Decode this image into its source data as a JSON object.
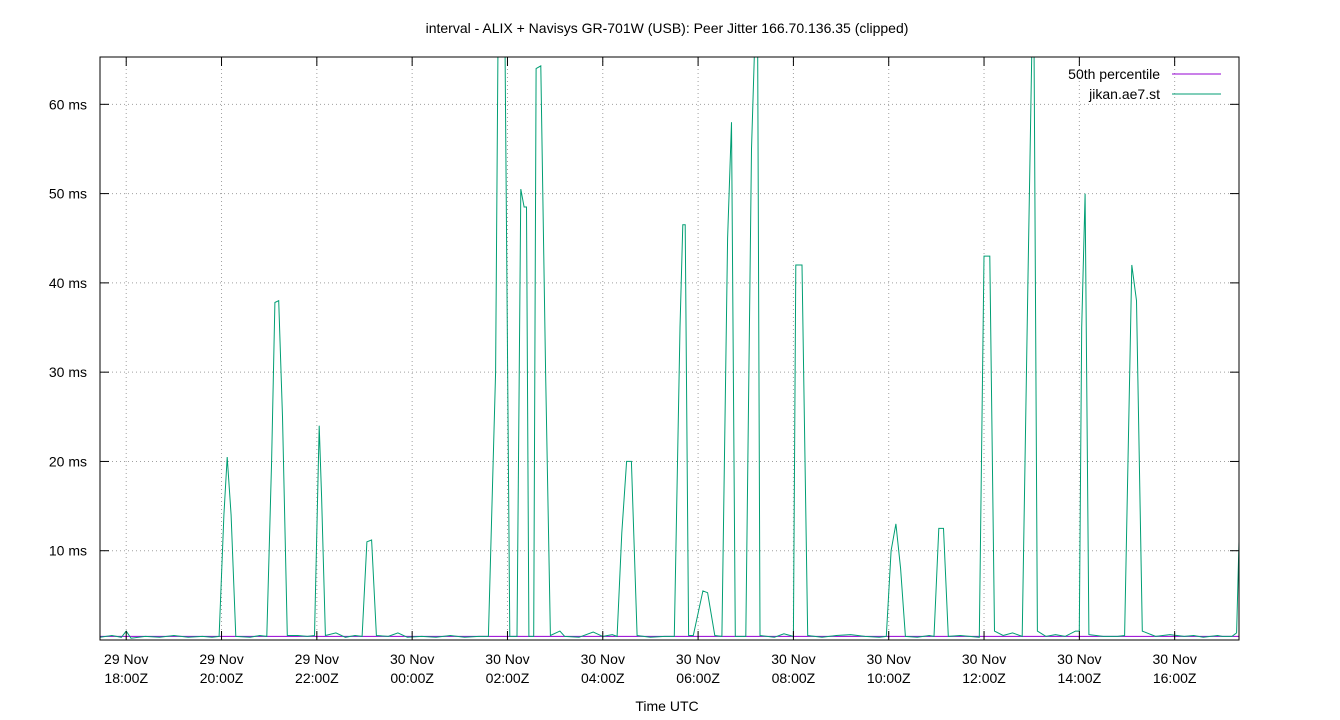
{
  "chart_data": {
    "type": "line",
    "title": "interval - ALIX + Navisys GR-701W (USB): Peer Jitter 166.70.136.35 (clipped)",
    "xlabel": "Time UTC",
    "ylabel": "",
    "y_unit": "ms",
    "ylim": [
      0,
      65.3
    ],
    "xlim": [
      -0.55,
      23.35
    ],
    "grid": true,
    "legend_position": "top-right",
    "y_ticks": [
      {
        "value": 10,
        "label": "10 ms"
      },
      {
        "value": 20,
        "label": "20 ms"
      },
      {
        "value": 30,
        "label": "30 ms"
      },
      {
        "value": 40,
        "label": "40 ms"
      },
      {
        "value": 50,
        "label": "50 ms"
      },
      {
        "value": 60,
        "label": "60 ms"
      }
    ],
    "x_ticks": [
      {
        "value": 0,
        "date": "29 Nov",
        "time": "18:00Z"
      },
      {
        "value": 2,
        "date": "29 Nov",
        "time": "20:00Z"
      },
      {
        "value": 4,
        "date": "29 Nov",
        "time": "22:00Z"
      },
      {
        "value": 6,
        "date": "30 Nov",
        "time": "00:00Z"
      },
      {
        "value": 8,
        "date": "30 Nov",
        "time": "02:00Z"
      },
      {
        "value": 10,
        "date": "30 Nov",
        "time": "04:00Z"
      },
      {
        "value": 12,
        "date": "30 Nov",
        "time": "06:00Z"
      },
      {
        "value": 14,
        "date": "30 Nov",
        "time": "08:00Z"
      },
      {
        "value": 16,
        "date": "30 Nov",
        "time": "10:00Z"
      },
      {
        "value": 18,
        "date": "30 Nov",
        "time": "12:00Z"
      },
      {
        "value": 20,
        "date": "30 Nov",
        "time": "14:00Z"
      },
      {
        "value": 22,
        "date": "30 Nov",
        "time": "16:00Z"
      }
    ],
    "x_units": "hours after 29 Nov 18:00Z",
    "series": [
      {
        "name": "50th percentile",
        "color": "#9400d3",
        "points": [
          [
            -0.55,
            0.4
          ],
          [
            23.35,
            0.4
          ]
        ]
      },
      {
        "name": "jikan.ae7.st",
        "color": "#009e73",
        "points": [
          [
            -0.55,
            0.3
          ],
          [
            -0.3,
            0.5
          ],
          [
            -0.1,
            0.3
          ],
          [
            0.0,
            1.0
          ],
          [
            0.1,
            0.2
          ],
          [
            0.4,
            0.4
          ],
          [
            0.7,
            0.3
          ],
          [
            1.0,
            0.5
          ],
          [
            1.3,
            0.3
          ],
          [
            1.6,
            0.4
          ],
          [
            1.8,
            0.3
          ],
          [
            1.95,
            0.4
          ],
          [
            2.05,
            14.0
          ],
          [
            2.12,
            20.5
          ],
          [
            2.2,
            14.0
          ],
          [
            2.3,
            0.4
          ],
          [
            2.6,
            0.3
          ],
          [
            2.8,
            0.5
          ],
          [
            2.95,
            0.4
          ],
          [
            3.05,
            20.0
          ],
          [
            3.12,
            37.8
          ],
          [
            3.2,
            38.0
          ],
          [
            3.28,
            25.0
          ],
          [
            3.38,
            0.5
          ],
          [
            3.6,
            0.5
          ],
          [
            3.8,
            0.4
          ],
          [
            3.95,
            0.5
          ],
          [
            4.05,
            24.0
          ],
          [
            4.1,
            16.0
          ],
          [
            4.18,
            0.5
          ],
          [
            4.4,
            0.8
          ],
          [
            4.6,
            0.3
          ],
          [
            4.8,
            0.5
          ],
          [
            4.95,
            0.4
          ],
          [
            5.05,
            11.0
          ],
          [
            5.15,
            11.2
          ],
          [
            5.25,
            0.5
          ],
          [
            5.5,
            0.4
          ],
          [
            5.7,
            0.8
          ],
          [
            5.9,
            0.3
          ],
          [
            6.2,
            0.4
          ],
          [
            6.5,
            0.3
          ],
          [
            6.8,
            0.5
          ],
          [
            7.1,
            0.3
          ],
          [
            7.4,
            0.4
          ],
          [
            7.6,
            0.4
          ],
          [
            7.75,
            30.0
          ],
          [
            7.8,
            65.3
          ],
          [
            7.95,
            65.3
          ],
          [
            8.05,
            0.4
          ],
          [
            8.2,
            0.4
          ],
          [
            8.28,
            50.5
          ],
          [
            8.35,
            48.5
          ],
          [
            8.4,
            48.5
          ],
          [
            8.45,
            0.4
          ],
          [
            8.55,
            0.4
          ],
          [
            8.6,
            64.0
          ],
          [
            8.7,
            64.3
          ],
          [
            8.8,
            30.0
          ],
          [
            8.9,
            0.5
          ],
          [
            9.1,
            1.0
          ],
          [
            9.2,
            0.4
          ],
          [
            9.5,
            0.3
          ],
          [
            9.8,
            0.9
          ],
          [
            10.0,
            0.4
          ],
          [
            10.2,
            0.6
          ],
          [
            10.3,
            0.4
          ],
          [
            10.4,
            12.0
          ],
          [
            10.5,
            20.0
          ],
          [
            10.6,
            20.0
          ],
          [
            10.72,
            0.5
          ],
          [
            11.0,
            0.3
          ],
          [
            11.3,
            0.4
          ],
          [
            11.5,
            0.4
          ],
          [
            11.62,
            35.0
          ],
          [
            11.68,
            46.5
          ],
          [
            11.73,
            46.5
          ],
          [
            11.8,
            0.5
          ],
          [
            11.9,
            0.5
          ],
          [
            12.0,
            3.0
          ],
          [
            12.1,
            5.5
          ],
          [
            12.2,
            5.3
          ],
          [
            12.35,
            0.5
          ],
          [
            12.5,
            0.4
          ],
          [
            12.62,
            45.0
          ],
          [
            12.7,
            58.0
          ],
          [
            12.78,
            0.4
          ],
          [
            13.0,
            0.4
          ],
          [
            13.12,
            55.0
          ],
          [
            13.18,
            65.3
          ],
          [
            13.25,
            65.3
          ],
          [
            13.3,
            0.5
          ],
          [
            13.6,
            0.3
          ],
          [
            13.8,
            0.7
          ],
          [
            14.0,
            0.4
          ],
          [
            14.05,
            42.0
          ],
          [
            14.18,
            42.0
          ],
          [
            14.3,
            0.5
          ],
          [
            14.6,
            0.3
          ],
          [
            14.9,
            0.5
          ],
          [
            15.2,
            0.6
          ],
          [
            15.5,
            0.4
          ],
          [
            15.8,
            0.3
          ],
          [
            15.95,
            0.4
          ],
          [
            16.05,
            10.0
          ],
          [
            16.15,
            13.0
          ],
          [
            16.25,
            8.0
          ],
          [
            16.35,
            0.4
          ],
          [
            16.6,
            0.3
          ],
          [
            16.85,
            0.5
          ],
          [
            16.95,
            0.4
          ],
          [
            17.05,
            12.5
          ],
          [
            17.15,
            12.5
          ],
          [
            17.25,
            0.4
          ],
          [
            17.5,
            0.5
          ],
          [
            17.7,
            0.4
          ],
          [
            17.9,
            0.3
          ],
          [
            18.0,
            43.0
          ],
          [
            18.12,
            43.0
          ],
          [
            18.22,
            1.0
          ],
          [
            18.4,
            0.5
          ],
          [
            18.6,
            0.8
          ],
          [
            18.8,
            0.4
          ],
          [
            18.92,
            40.0
          ],
          [
            19.0,
            65.3
          ],
          [
            19.05,
            65.3
          ],
          [
            19.12,
            1.0
          ],
          [
            19.3,
            0.4
          ],
          [
            19.5,
            0.6
          ],
          [
            19.7,
            0.4
          ],
          [
            19.92,
            1.0
          ],
          [
            20.0,
            1.0
          ],
          [
            20.05,
            35.0
          ],
          [
            20.12,
            50.0
          ],
          [
            20.2,
            0.6
          ],
          [
            20.5,
            0.4
          ],
          [
            20.8,
            0.4
          ],
          [
            20.95,
            0.5
          ],
          [
            21.1,
            42.0
          ],
          [
            21.2,
            38.0
          ],
          [
            21.32,
            1.0
          ],
          [
            21.6,
            0.4
          ],
          [
            21.9,
            0.6
          ],
          [
            22.2,
            0.4
          ],
          [
            22.4,
            0.5
          ],
          [
            22.6,
            0.3
          ],
          [
            22.9,
            0.5
          ],
          [
            23.0,
            0.4
          ],
          [
            23.2,
            0.4
          ],
          [
            23.3,
            0.8
          ],
          [
            23.35,
            11.0
          ]
        ]
      }
    ]
  }
}
